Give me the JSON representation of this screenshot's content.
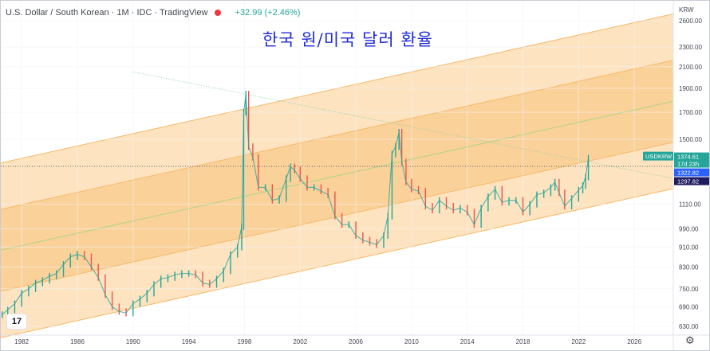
{
  "header": {
    "symbol_line": "U.S. Dollar / South Korean · 1M · IDC · TradingView",
    "change": "+32.99 (+2.46%)",
    "colors": {
      "up": "#26a69a",
      "symbol_dot": "#f23645"
    }
  },
  "annotation_title": "한국 원/미국 달러 환율",
  "logo": "17",
  "icons": {
    "settings": "gear-icon",
    "compare": "compare-icon"
  },
  "chart_data": {
    "type": "line",
    "symbol": "USDKRW",
    "ylabel": "KRW",
    "log_scale": true,
    "ylim": [
      605,
      2850
    ],
    "xlim": [
      1980.5,
      2028.8
    ],
    "x_ticks": [
      "1982",
      "1986",
      "1990",
      "1994",
      "1998",
      "2002",
      "2006",
      "2010",
      "2014",
      "2018",
      "2022",
      "2026"
    ],
    "y_ticks": [
      "2600.00",
      "2300.00",
      "2100.00",
      "1900.00",
      "1700.00",
      "1500.00",
      "1110.00",
      "990.00",
      "910.00",
      "830.00",
      "750.00",
      "690.00",
      "630.00"
    ],
    "price_labels": [
      {
        "text": "USDKRW",
        "color": "#26a69a"
      },
      {
        "text": "1374.61",
        "color": "#26a69a"
      },
      {
        "text": "17d 23h",
        "color": "#26a69a"
      },
      {
        "text": "1322.82",
        "color": "#2962ff"
      },
      {
        "text": "1297.82",
        "color": "#1e1b5e"
      }
    ],
    "last_value": 1374.61,
    "ref_line_value": 1322.82,
    "channel": {
      "slope_per_year": 0.0143,
      "mid_1980": 890,
      "band_offsets": [
        -0.405,
        -0.19,
        0.19,
        0.405
      ],
      "fill_colors": [
        "#fde3bf",
        "#fbd19a"
      ],
      "midline_color": "#b8d38a"
    },
    "trendline": {
      "points": [
        [
          1990,
          2050
        ],
        [
          2028.8,
          1250
        ]
      ],
      "color": "#8ed0a8"
    },
    "series": [
      {
        "color": "#26a69a",
        "down_color": "#ef5350",
        "x": [
          1980.6,
          1981.0,
          1981.5,
          1982.0,
          1982.5,
          1983.0,
          1983.5,
          1984.0,
          1984.5,
          1985.0,
          1985.5,
          1986.0,
          1986.5,
          1987.0,
          1987.5,
          1988.0,
          1988.5,
          1989.0,
          1989.5,
          1990.0,
          1990.5,
          1991.0,
          1991.5,
          1992.0,
          1992.5,
          1993.0,
          1993.5,
          1994.0,
          1994.5,
          1995.0,
          1995.5,
          1996.0,
          1996.5,
          1997.0,
          1997.5,
          1997.8,
          1997.95,
          1998.1,
          1998.3,
          1998.6,
          1999.0,
          1999.5,
          2000.0,
          2000.5,
          2001.0,
          2001.3,
          2001.6,
          2002.0,
          2002.5,
          2003.0,
          2003.5,
          2004.0,
          2004.5,
          2005.0,
          2005.5,
          2006.0,
          2006.5,
          2007.0,
          2007.5,
          2008.0,
          2008.3,
          2008.6,
          2008.85,
          2009.1,
          2009.3,
          2009.6,
          2010.0,
          2010.5,
          2011.0,
          2011.5,
          2012.0,
          2012.5,
          2013.0,
          2013.5,
          2014.0,
          2014.5,
          2015.0,
          2015.5,
          2016.0,
          2016.5,
          2017.0,
          2017.5,
          2018.0,
          2018.5,
          2019.0,
          2019.5,
          2020.0,
          2020.3,
          2020.6,
          2021.0,
          2021.5,
          2022.0,
          2022.3,
          2022.5,
          2022.7
        ],
        "values": [
          665,
          680,
          700,
          735,
          750,
          770,
          780,
          795,
          805,
          840,
          870,
          880,
          870,
          830,
          790,
          730,
          690,
          675,
          670,
          700,
          715,
          735,
          765,
          785,
          790,
          800,
          805,
          805,
          800,
          770,
          765,
          785,
          815,
          880,
          910,
          1000,
          1700,
          1850,
          1450,
          1380,
          1200,
          1200,
          1130,
          1140,
          1250,
          1320,
          1300,
          1250,
          1200,
          1200,
          1180,
          1160,
          1050,
          1010,
          1010,
          960,
          940,
          930,
          920,
          960,
          1050,
          1400,
          1450,
          1550,
          1350,
          1230,
          1190,
          1180,
          1100,
          1080,
          1130,
          1100,
          1080,
          1090,
          1070,
          1010,
          1090,
          1150,
          1190,
          1120,
          1130,
          1130,
          1070,
          1110,
          1160,
          1170,
          1200,
          1230,
          1170,
          1100,
          1140,
          1185,
          1210,
          1260,
          1374
        ]
      }
    ]
  }
}
